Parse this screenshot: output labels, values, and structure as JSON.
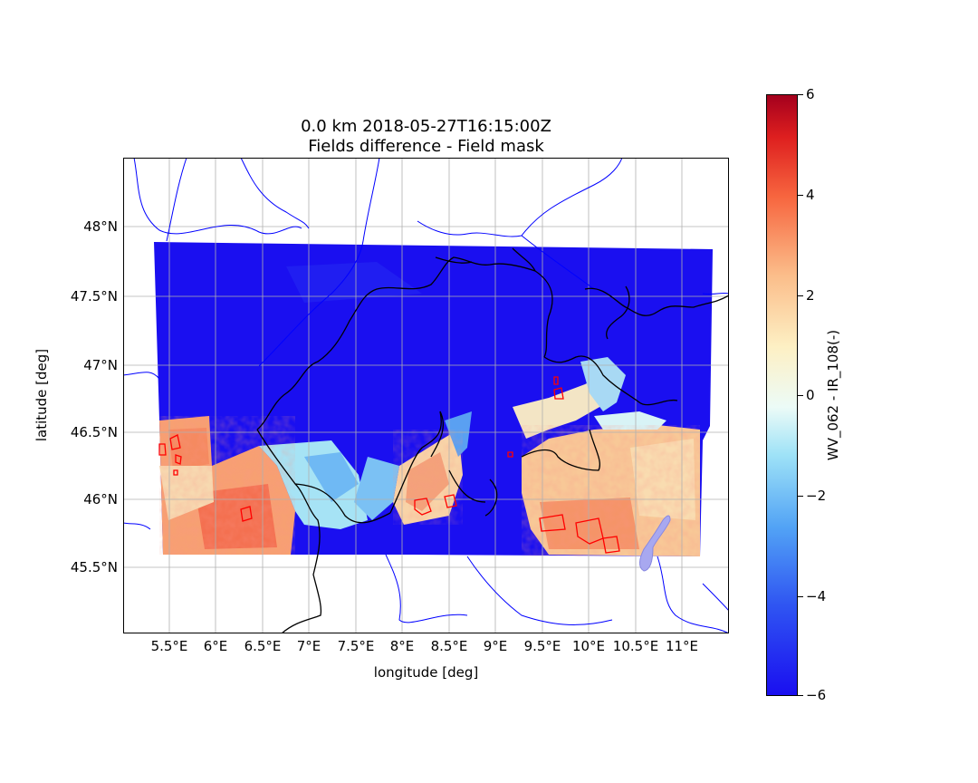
{
  "title_line1": "0.0 km 2018-05-27T16:15:00Z",
  "title_line2": "Fields difference - Field mask",
  "xlabel": "longitude [deg]",
  "ylabel": "latitude [deg]",
  "x_ticks": [
    "5.5°E",
    "6°E",
    "6.5°E",
    "7°E",
    "7.5°E",
    "8°E",
    "8.5°E",
    "9°E",
    "9.5°E",
    "10°E",
    "10.5°E",
    "11°E"
  ],
  "y_ticks": [
    "48°N",
    "47.5°N",
    "47°N",
    "46.5°N",
    "46°N",
    "45.5°N"
  ],
  "colorbar": {
    "label": "WV_062 - IR_108(-)",
    "ticks": [
      "6",
      "4",
      "2",
      "0",
      "−2",
      "−4",
      "−6"
    ],
    "min": -6,
    "max": 6
  },
  "colors": {
    "low": "#1a0ff0",
    "high": "#a4001d",
    "borders": "#000000",
    "rivers": "#0000ff",
    "mask_contour": "#ff0000"
  },
  "map_data": {
    "lon_range": [
      5.0,
      11.5
    ],
    "lat_range": [
      45.0,
      48.5
    ],
    "grid": true
  }
}
